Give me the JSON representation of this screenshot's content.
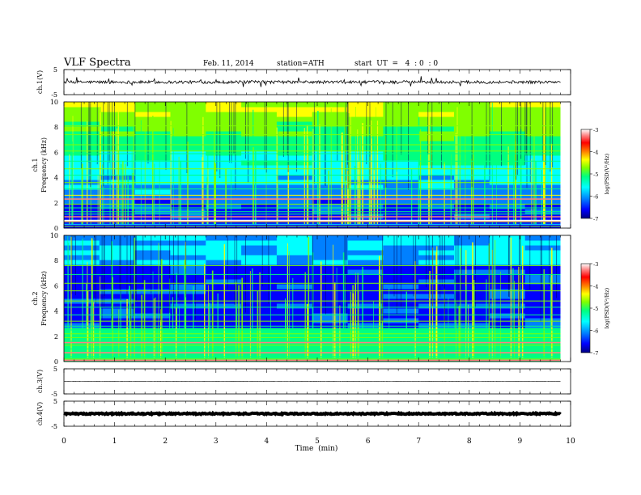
{
  "header": {
    "title": "VLF  Spectra",
    "date": "Feb. 11, 2014",
    "station": "station=ATH",
    "start_ut": "start  UT  =   4  : 0  : 0"
  },
  "colors": {
    "trace": "#000000",
    "colormap": [
      "#000080",
      "#0000ff",
      "#0080ff",
      "#00ffff",
      "#00ff80",
      "#80ff00",
      "#ffff00",
      "#ff8000",
      "#ff0000",
      "#ff8080",
      "#ffffff"
    ]
  },
  "chart_data": [
    {
      "type": "line",
      "panel": "ch1-waveform",
      "ylabel": "ch.1(V)",
      "ylim": [
        -5,
        5
      ],
      "yticks": [
        "5",
        "-5"
      ],
      "xlim": [
        0,
        10
      ],
      "data_end_min": 9.8,
      "level": 0,
      "noise_amplitude": 0.6
    },
    {
      "type": "heatmap",
      "panel": "ch1-spectrogram",
      "ylabel_lines": [
        "ch.1",
        "Frequency  (kHz)"
      ],
      "ylim": [
        0,
        10
      ],
      "yticks": [
        "0",
        "2",
        "4",
        "6",
        "8",
        "10"
      ],
      "xlim": [
        0,
        10
      ],
      "data_end_min": 9.8,
      "colorbar": {
        "label": "log(PSD(V²/Hz)",
        "range": [
          -7,
          -3
        ],
        "ticks": [
          "-3",
          "-4",
          "-5",
          "-6",
          "-7"
        ]
      },
      "lines_khz": [
        0.15,
        0.3,
        0.5,
        0.9,
        1.1,
        1.3,
        1.6,
        1.9,
        2.3,
        2.6,
        3.1,
        3.6,
        4.2,
        4.7,
        5.3,
        5.9,
        6.1,
        6.6,
        7.4,
        8.1
      ],
      "strong_lines_khz": [
        0.55,
        0.6,
        0.9,
        2.3
      ]
    },
    {
      "type": "heatmap",
      "panel": "ch2-spectrogram",
      "ylabel_lines": [
        "ch.2",
        "Frequency  (kHz)"
      ],
      "ylim": [
        0,
        10
      ],
      "yticks": [
        "0",
        "2",
        "4",
        "6",
        "8",
        "10"
      ],
      "xlim": [
        0,
        10
      ],
      "data_end_min": 9.8,
      "colorbar": {
        "label": "log(PSD(V²/Hz)",
        "range": [
          -7,
          -3
        ],
        "ticks": [
          "-3",
          "-4",
          "-5",
          "-6",
          "-7"
        ]
      },
      "lines_khz": [
        0.2,
        0.4,
        0.7,
        1.0,
        1.3,
        1.6,
        1.9,
        2.2,
        2.5,
        2.8,
        3.2,
        3.7,
        4.3,
        4.8,
        5.6,
        6.2,
        6.9,
        7.6
      ],
      "strong_lines_khz": [
        0.1,
        0.7,
        1.5
      ]
    },
    {
      "type": "line",
      "panel": "ch3-waveform",
      "ylabel": "ch.3(V)",
      "ylim": [
        -5,
        5
      ],
      "yticks": [
        "5",
        "-5"
      ],
      "xlim": [
        0,
        10
      ],
      "data_end_min": 9.8,
      "level": 0,
      "noise_amplitude": 0.08
    },
    {
      "type": "line",
      "panel": "ch4-waveform",
      "ylabel": "ch.4(V)",
      "ylim": [
        -5,
        5
      ],
      "yticks": [
        "5",
        "-5"
      ],
      "xlim": [
        0,
        10
      ],
      "data_end_min": 9.8,
      "level": 0,
      "noise_amplitude": 0.25
    }
  ],
  "x_axis": {
    "label": "Time  (min)",
    "ticks": [
      "0",
      "1",
      "2",
      "3",
      "4",
      "5",
      "6",
      "7",
      "8",
      "9",
      "10"
    ]
  }
}
